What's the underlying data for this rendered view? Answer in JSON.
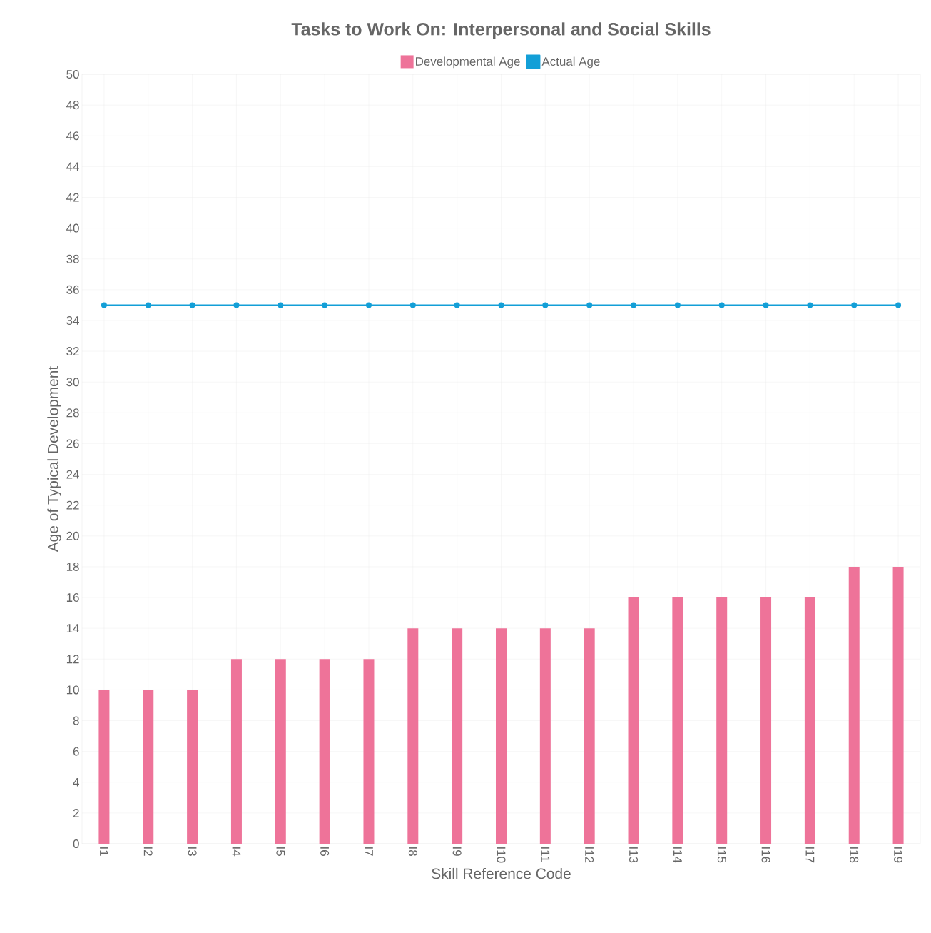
{
  "chart_data": {
    "type": "bar",
    "title": "Tasks to Work On: Interpersonal and Social Skills",
    "xlabel": "Skill Reference Code",
    "ylabel": "Age of Typical Development",
    "categories": [
      "I1",
      "I2",
      "I3",
      "I4",
      "I5",
      "I6",
      "I7",
      "I8",
      "I9",
      "I10",
      "I11",
      "I12",
      "I13",
      "I14",
      "I15",
      "I16",
      "I17",
      "I18",
      "I19"
    ],
    "series": [
      {
        "name": "Developmental Age",
        "color": "#ee7399",
        "values": [
          10,
          10,
          10,
          12,
          12,
          12,
          12,
          14,
          14,
          14,
          14,
          14,
          16,
          16,
          16,
          16,
          16,
          18,
          18
        ]
      },
      {
        "name": "Actual Age",
        "type": "line",
        "color": "#139fd7",
        "marker": "circle",
        "values": [
          35,
          35,
          35,
          35,
          35,
          35,
          35,
          35,
          35,
          35,
          35,
          35,
          35,
          35,
          35,
          35,
          35,
          35,
          35
        ]
      }
    ],
    "ylim": [
      0,
      50
    ],
    "yticks": [
      0,
      2,
      4,
      6,
      8,
      10,
      12,
      14,
      16,
      18,
      20,
      22,
      24,
      26,
      28,
      30,
      32,
      34,
      36,
      38,
      40,
      42,
      44,
      46,
      48,
      50
    ],
    "grid": true,
    "legend": "top"
  }
}
